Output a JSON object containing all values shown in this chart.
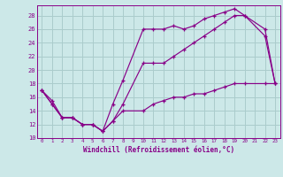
{
  "xlabel": "Windchill (Refroidissement éolien,°C)",
  "bg_color": "#cce8e8",
  "grid_color": "#aacccc",
  "line_color": "#880088",
  "xlim": [
    -0.5,
    23.5
  ],
  "ylim": [
    10,
    29.5
  ],
  "xticks": [
    0,
    1,
    2,
    3,
    4,
    5,
    6,
    7,
    8,
    9,
    10,
    11,
    12,
    13,
    14,
    15,
    16,
    17,
    18,
    19,
    20,
    21,
    22,
    23
  ],
  "yticks": [
    10,
    12,
    14,
    16,
    18,
    20,
    22,
    24,
    26,
    28
  ],
  "line1_x": [
    0,
    1,
    2,
    3,
    4,
    5,
    6,
    7,
    8,
    10,
    11,
    12,
    13,
    14,
    15,
    16,
    17,
    18,
    19,
    20,
    22,
    23
  ],
  "line1_y": [
    17,
    15,
    13,
    13,
    12,
    12,
    11,
    15,
    18.5,
    26,
    26,
    26,
    26.5,
    26,
    26.5,
    27.5,
    28,
    28.5,
    29,
    28,
    26,
    18
  ],
  "line2_x": [
    0,
    1,
    2,
    3,
    4,
    5,
    6,
    7,
    8,
    10,
    11,
    12,
    13,
    14,
    15,
    16,
    17,
    18,
    19,
    20,
    22,
    23
  ],
  "line2_y": [
    17,
    15,
    13,
    13,
    12,
    12,
    11,
    12.5,
    15,
    21,
    21,
    21,
    22,
    23,
    24,
    25,
    26,
    27,
    28,
    28,
    25,
    18
  ],
  "line3_x": [
    0,
    1,
    2,
    3,
    4,
    5,
    6,
    7,
    8,
    10,
    11,
    12,
    13,
    14,
    15,
    16,
    17,
    18,
    19,
    20,
    22,
    23
  ],
  "line3_y": [
    17,
    15.5,
    13,
    13,
    12,
    12,
    11,
    12.5,
    14,
    14,
    15,
    15.5,
    16,
    16,
    16.5,
    16.5,
    17,
    17.5,
    18,
    18,
    18,
    18
  ]
}
